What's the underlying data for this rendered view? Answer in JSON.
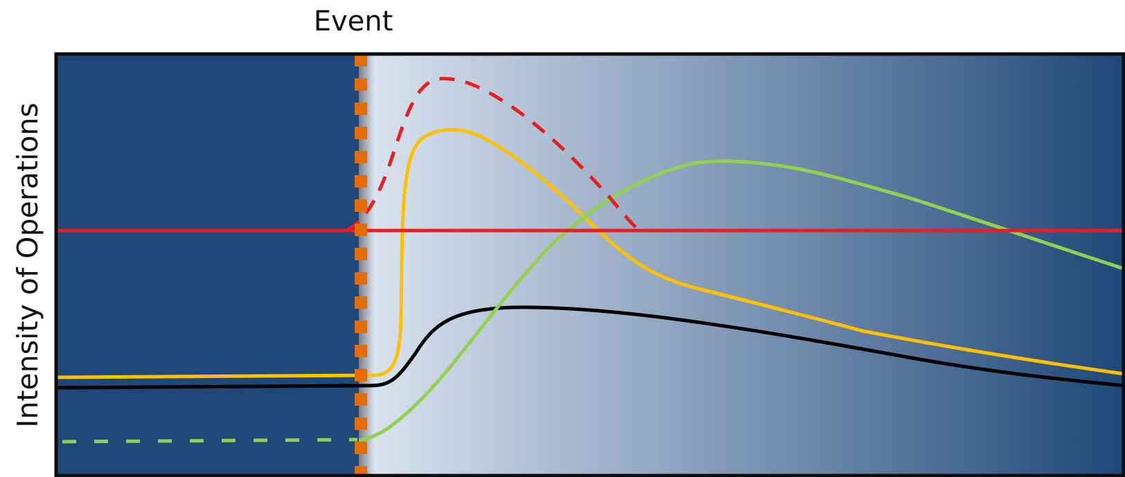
{
  "event_label": "Event",
  "y_axis_label": "Intensity of Operations",
  "colors": {
    "pre_event_background": "#1f4778",
    "post_event_gradient_start": "#dce5f1",
    "post_event_gradient_end": "#1f4778",
    "frame": "#0d0d0d",
    "event_marker": "#e36c09",
    "red_threshold": "#e81f1f",
    "red_dashed": "#e81f1f",
    "yellow": "#ffc000",
    "green": "#92d050",
    "black": "#000000"
  }
}
